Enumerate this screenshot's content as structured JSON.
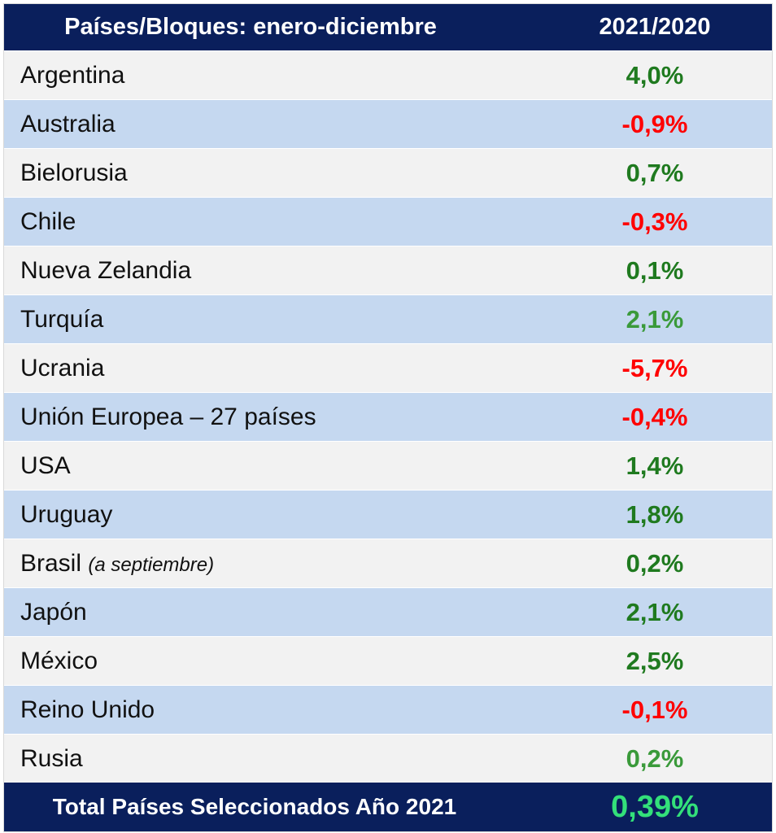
{
  "header": {
    "col1": "Países/Bloques: enero-diciembre",
    "col2": "2021/2020"
  },
  "colors": {
    "header_bg": "#0a1f5c",
    "row_light": "#f2f2f2",
    "row_blue": "#c5d8f0",
    "positive_dark_green": "#1f7a1f",
    "positive_light_green": "#3a9a3a",
    "negative_red": "#ff0000",
    "total_green": "#33e07a"
  },
  "rows": [
    {
      "name": "Argentina",
      "note": "",
      "value": "4,0%",
      "color": "#1f7a1f"
    },
    {
      "name": "Australia",
      "note": "",
      "value": "-0,9%",
      "color": "#ff0000"
    },
    {
      "name": "Bielorusia",
      "note": "",
      "value": "0,7%",
      "color": "#1f7a1f"
    },
    {
      "name": "Chile",
      "note": "",
      "value": "-0,3%",
      "color": "#ff0000"
    },
    {
      "name": "Nueva Zelandia",
      "note": "",
      "value": "0,1%",
      "color": "#1f7a1f"
    },
    {
      "name": "Turquía",
      "note": "",
      "value": "2,1%",
      "color": "#3a9a3a"
    },
    {
      "name": "Ucrania",
      "note": "",
      "value": "-5,7%",
      "color": "#ff0000"
    },
    {
      "name": "Unión Europea – 27 países",
      "note": "",
      "value": "-0,4%",
      "color": "#ff0000"
    },
    {
      "name": "USA",
      "note": "",
      "value": "1,4%",
      "color": "#1f7a1f"
    },
    {
      "name": "Uruguay",
      "note": "",
      "value": "1,8%",
      "color": "#1f7a1f"
    },
    {
      "name": "Brasil ",
      "note": "(a septiembre)",
      "value": "0,2%",
      "color": "#1f7a1f"
    },
    {
      "name": "Japón",
      "note": "",
      "value": "2,1%",
      "color": "#1f7a1f"
    },
    {
      "name": "México",
      "note": "",
      "value": "2,5%",
      "color": "#1f7a1f"
    },
    {
      "name": "Reino Unido",
      "note": "",
      "value": "-0,1%",
      "color": "#ff0000"
    },
    {
      "name": "Rusia",
      "note": "",
      "value": "0,2%",
      "color": "#3a9a3a"
    }
  ],
  "total": {
    "label": "Total Países Seleccionados Año 2021",
    "value": "0,39%",
    "color": "#33e07a"
  }
}
